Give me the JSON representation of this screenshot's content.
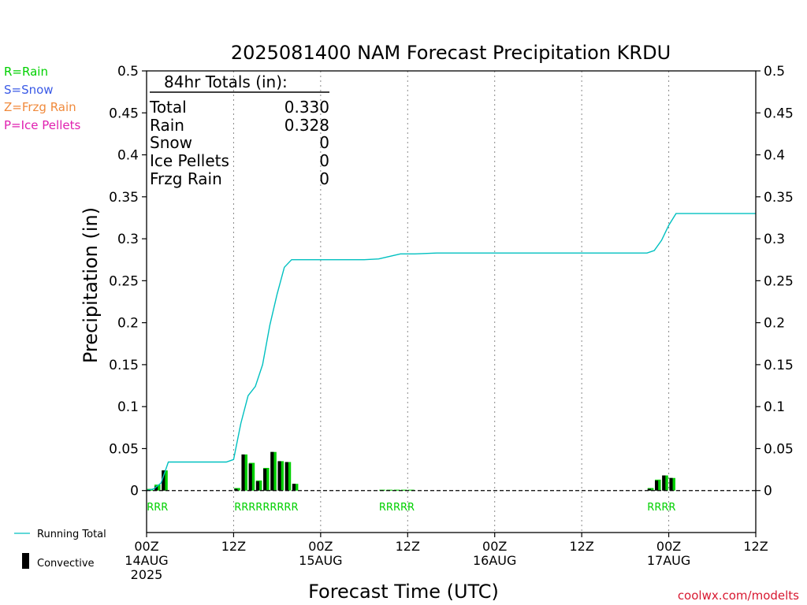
{
  "chart_data": {
    "type": "bar",
    "title": "2025081400 NAM Forecast Precipitation KRDU",
    "xlabel": "Forecast Time (UTC)",
    "ylabel": "Precipitation (in)",
    "ylim": [
      -0.05,
      0.5
    ],
    "yticks": [
      0,
      0.05,
      0.1,
      0.15,
      0.2,
      0.25,
      0.3,
      0.35,
      0.4,
      0.45,
      0.5
    ],
    "ytick_labels": [
      "0",
      "0.05",
      "0.1",
      "0.15",
      "0.2",
      "0.25",
      "0.3",
      "0.35",
      "0.4",
      "0.45",
      "0.5"
    ],
    "xlim_hours": [
      0,
      84
    ],
    "xticks": [
      {
        "hour": 0,
        "lines": [
          "00Z",
          "14AUG",
          "2025"
        ]
      },
      {
        "hour": 12,
        "lines": [
          "12Z"
        ]
      },
      {
        "hour": 24,
        "lines": [
          "00Z",
          "15AUG"
        ]
      },
      {
        "hour": 36,
        "lines": [
          "12Z"
        ]
      },
      {
        "hour": 48,
        "lines": [
          "00Z",
          "16AUG"
        ]
      },
      {
        "hour": 60,
        "lines": [
          "12Z"
        ]
      },
      {
        "hour": 72,
        "lines": [
          "00Z",
          "17AUG"
        ]
      },
      {
        "hour": 84,
        "lines": [
          "12Z"
        ]
      }
    ],
    "grid": "vertical dotted lines at 12-hour ticks",
    "series": [
      {
        "name": "Convective",
        "kind": "bar",
        "color": "#000000",
        "points": [
          {
            "hour": 1,
            "value": 0.001
          },
          {
            "hour": 2,
            "value": 0.005
          },
          {
            "hour": 3,
            "value": 0.024
          },
          {
            "hour": 13,
            "value": 0.002
          },
          {
            "hour": 14,
            "value": 0.043
          },
          {
            "hour": 15,
            "value": 0.032
          },
          {
            "hour": 16,
            "value": 0.011
          },
          {
            "hour": 17,
            "value": 0.026
          },
          {
            "hour": 18,
            "value": 0.046
          },
          {
            "hour": 19,
            "value": 0.035
          },
          {
            "hour": 20,
            "value": 0.034
          },
          {
            "hour": 21,
            "value": 0.008
          },
          {
            "hour": 70,
            "value": 0.002
          },
          {
            "hour": 71,
            "value": 0.012
          },
          {
            "hour": 72,
            "value": 0.018
          },
          {
            "hour": 73,
            "value": 0.015
          }
        ]
      },
      {
        "name": "Rain",
        "kind": "bar",
        "color": "#00d000",
        "points": [
          {
            "hour": 1,
            "value": 0.002
          },
          {
            "hour": 2,
            "value": 0.007
          },
          {
            "hour": 3,
            "value": 0.024
          },
          {
            "hour": 13,
            "value": 0.003
          },
          {
            "hour": 14,
            "value": 0.043
          },
          {
            "hour": 15,
            "value": 0.033
          },
          {
            "hour": 16,
            "value": 0.012
          },
          {
            "hour": 17,
            "value": 0.027
          },
          {
            "hour": 18,
            "value": 0.046
          },
          {
            "hour": 19,
            "value": 0.035
          },
          {
            "hour": 20,
            "value": 0.034
          },
          {
            "hour": 21,
            "value": 0.008
          },
          {
            "hour": 33,
            "value": 0.001
          },
          {
            "hour": 34,
            "value": 0.001
          },
          {
            "hour": 35,
            "value": 0.001
          },
          {
            "hour": 36,
            "value": 0.001
          },
          {
            "hour": 37,
            "value": 0.001
          },
          {
            "hour": 70,
            "value": 0.003
          },
          {
            "hour": 71,
            "value": 0.013
          },
          {
            "hour": 72,
            "value": 0.018
          },
          {
            "hour": 73,
            "value": 0.015
          }
        ]
      },
      {
        "name": "Running Total",
        "kind": "line",
        "color": "#00c0c0",
        "points": [
          [
            0,
            0
          ],
          [
            1,
            0.002
          ],
          [
            2,
            0.009
          ],
          [
            3,
            0.034
          ],
          [
            4,
            0.034
          ],
          [
            6,
            0.034
          ],
          [
            9,
            0.034
          ],
          [
            11,
            0.034
          ],
          [
            12,
            0.037
          ],
          [
            13,
            0.08
          ],
          [
            14,
            0.113
          ],
          [
            15,
            0.124
          ],
          [
            16,
            0.15
          ],
          [
            17,
            0.197
          ],
          [
            18,
            0.234
          ],
          [
            19,
            0.266
          ],
          [
            20,
            0.275
          ],
          [
            24,
            0.275
          ],
          [
            30,
            0.275
          ],
          [
            32,
            0.276
          ],
          [
            34,
            0.28
          ],
          [
            35,
            0.282
          ],
          [
            37,
            0.282
          ],
          [
            40,
            0.283
          ],
          [
            50,
            0.283
          ],
          [
            60,
            0.283
          ],
          [
            69,
            0.283
          ],
          [
            70,
            0.286
          ],
          [
            71,
            0.298
          ],
          [
            72,
            0.316
          ],
          [
            73,
            0.33
          ],
          [
            84,
            0.33
          ]
        ]
      }
    ],
    "ptype_labels": [
      {
        "hours": [
          1,
          2,
          3
        ],
        "text": "RRR"
      },
      {
        "hours": [
          13,
          14,
          15,
          16,
          17,
          18,
          19,
          20,
          21
        ],
        "text": "RRRRRRRRR"
      },
      {
        "hours": [
          33,
          34,
          35,
          36,
          37
        ],
        "text": "RRRRR"
      },
      {
        "hours": [
          70,
          71,
          72,
          73
        ],
        "text": "RRRR"
      }
    ],
    "totals_box": {
      "header": "84hr Totals (in):",
      "rows": [
        {
          "label": "Total",
          "value": "0.330"
        },
        {
          "label": "Rain",
          "value": "0.328"
        },
        {
          "label": "Snow",
          "value": "0"
        },
        {
          "label": "Ice Pellets",
          "value": "0"
        },
        {
          "label": "Frzg Rain",
          "value": "0"
        }
      ]
    },
    "ptype_legend": [
      {
        "text": "R=Rain",
        "color": "#00d000"
      },
      {
        "text": "S=Snow",
        "color": "#3a5ae6"
      },
      {
        "text": "Z=Frzg Rain",
        "color": "#f08a3c"
      },
      {
        "text": "P=Ice Pellets",
        "color": "#e020b0"
      }
    ],
    "legend_bottom": [
      {
        "text": "Running Total"
      },
      {
        "text": "Convective"
      }
    ],
    "credit": "coolwx.com/modelts",
    "credit_color": "#d81830",
    "rain_label_color": "#00d000"
  }
}
